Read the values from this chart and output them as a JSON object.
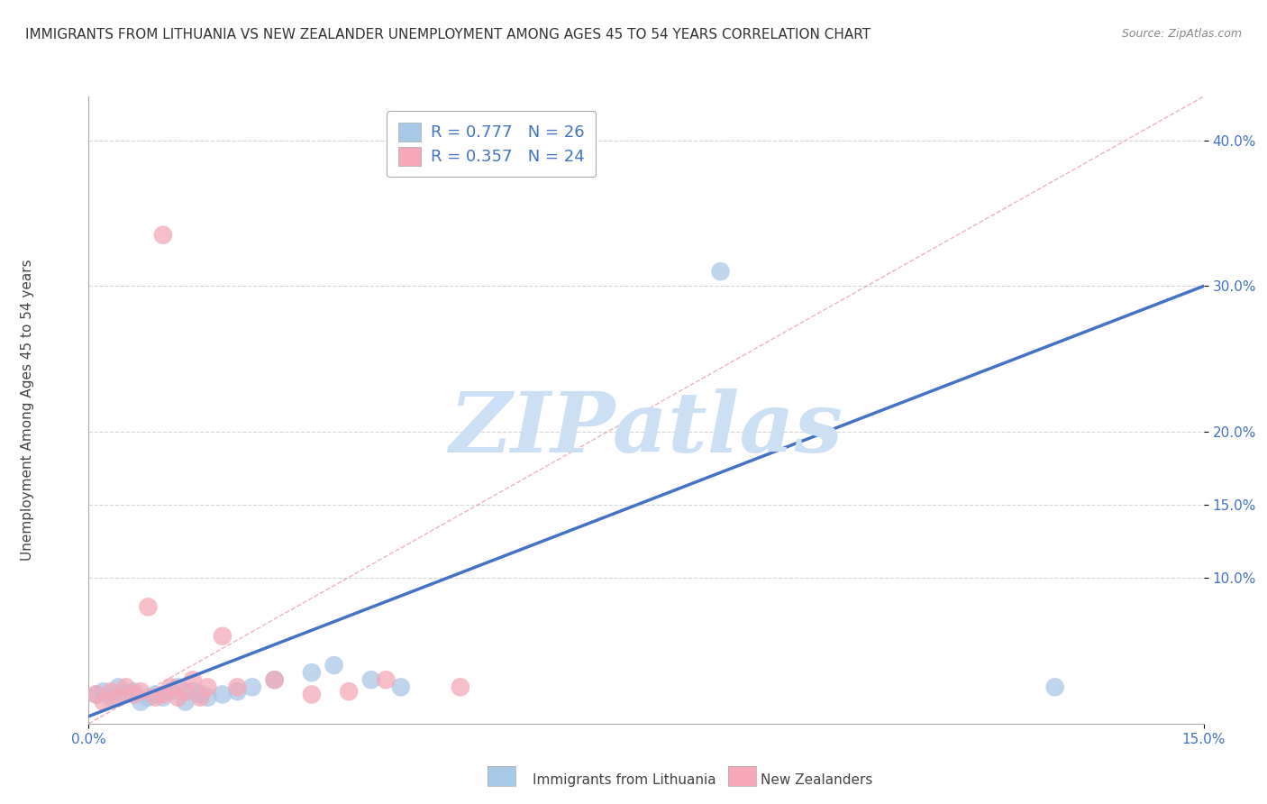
{
  "title": "IMMIGRANTS FROM LITHUANIA VS NEW ZEALANDER UNEMPLOYMENT AMONG AGES 45 TO 54 YEARS CORRELATION CHART",
  "source": "Source: ZipAtlas.com",
  "ylabel": "Unemployment Among Ages 45 to 54 years",
  "xlim": [
    0.0,
    0.15
  ],
  "ylim": [
    0.0,
    0.43
  ],
  "ytick_values": [
    0.1,
    0.15,
    0.2,
    0.3,
    0.4
  ],
  "ytick_labels": [
    "10.0%",
    "15.0%",
    "20.0%",
    "30.0%",
    "40.0%"
  ],
  "blue_color": "#a8c8e8",
  "pink_color": "#f4a8b8",
  "blue_line_color": "#4472c4",
  "pink_line_color": "#e05878",
  "diag_color": "#f4a8b8",
  "legend_R_blue": "R = 0.777",
  "legend_N_blue": "N = 26",
  "legend_R_pink": "R = 0.357",
  "legend_N_pink": "N = 24",
  "watermark": "ZIPatlas",
  "watermark_color": "#cce0f5",
  "blue_scatter_x": [
    0.001,
    0.002,
    0.003,
    0.004,
    0.005,
    0.006,
    0.007,
    0.008,
    0.009,
    0.01,
    0.011,
    0.012,
    0.013,
    0.014,
    0.015,
    0.016,
    0.018,
    0.02,
    0.022,
    0.025,
    0.03,
    0.033,
    0.038,
    0.042,
    0.085,
    0.13
  ],
  "blue_scatter_y": [
    0.02,
    0.022,
    0.018,
    0.025,
    0.02,
    0.022,
    0.015,
    0.018,
    0.02,
    0.018,
    0.022,
    0.025,
    0.015,
    0.022,
    0.02,
    0.018,
    0.02,
    0.022,
    0.025,
    0.03,
    0.035,
    0.04,
    0.03,
    0.025,
    0.31,
    0.025
  ],
  "pink_scatter_x": [
    0.001,
    0.002,
    0.003,
    0.004,
    0.005,
    0.006,
    0.007,
    0.008,
    0.009,
    0.01,
    0.011,
    0.012,
    0.013,
    0.014,
    0.015,
    0.016,
    0.018,
    0.02,
    0.025,
    0.03,
    0.035,
    0.04,
    0.05,
    0.01
  ],
  "pink_scatter_y": [
    0.02,
    0.015,
    0.022,
    0.018,
    0.025,
    0.02,
    0.022,
    0.08,
    0.018,
    0.02,
    0.025,
    0.018,
    0.022,
    0.03,
    0.018,
    0.025,
    0.06,
    0.025,
    0.03,
    0.02,
    0.022,
    0.03,
    0.025,
    0.335
  ],
  "title_fontsize": 11,
  "axis_label_fontsize": 11,
  "tick_fontsize": 11,
  "legend_fontsize": 13,
  "legend_color": "#4472c4"
}
